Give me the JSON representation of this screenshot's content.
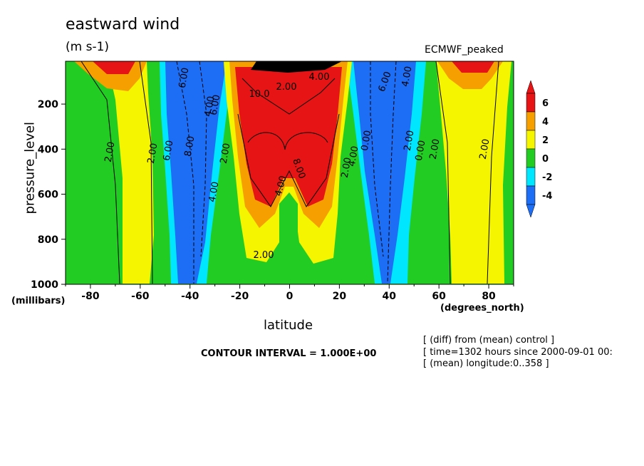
{
  "chart_data": {
    "type": "heatmap",
    "title": "eastward wind",
    "units": "(m s-1)",
    "dataset": "ECMWF_peaked",
    "xlabel": "latitude",
    "x_unit": "(degrees_north)",
    "ylabel": "pressure_level",
    "y_unit": "(millibars)",
    "x_ticks": [
      -80,
      -60,
      -40,
      -20,
      0,
      20,
      40,
      60,
      80
    ],
    "y_ticks": [
      200,
      400,
      600,
      800,
      1000
    ],
    "xlim": [
      -90,
      90
    ],
    "ylim": [
      1000,
      10
    ],
    "colorbar": {
      "labels": [
        "6",
        "4",
        "2",
        "0",
        "-2",
        "-4"
      ],
      "levels": [
        -6,
        -4,
        -2,
        0,
        2,
        4,
        6
      ],
      "colors": [
        "#1e6ef5",
        "#00e6ff",
        "#22cc22",
        "#f5f500",
        "#f5a000",
        "#e61414"
      ]
    },
    "contour_labels": [
      "6.00",
      "4.00",
      "2.00",
      "10.0",
      "4.00",
      "6.00",
      "4.00",
      "8.00",
      "2.00",
      "2.00",
      "4.00",
      "6.00",
      "4.00",
      "2.00",
      "2.00",
      "0.00",
      "2.00",
      "2.00",
      "2.00",
      "8.00",
      "4.00",
      "0.00",
      "2.00",
      "6.00"
    ],
    "footer": {
      "contour_interval": "CONTOUR INTERVAL = 1.000E+00",
      "notes": [
        "[ (diff) from (mean) control ]",
        "[ time=1302 hours since 2000-09-01 00:",
        "[ (mean) longitude:0..358 ]"
      ]
    }
  }
}
